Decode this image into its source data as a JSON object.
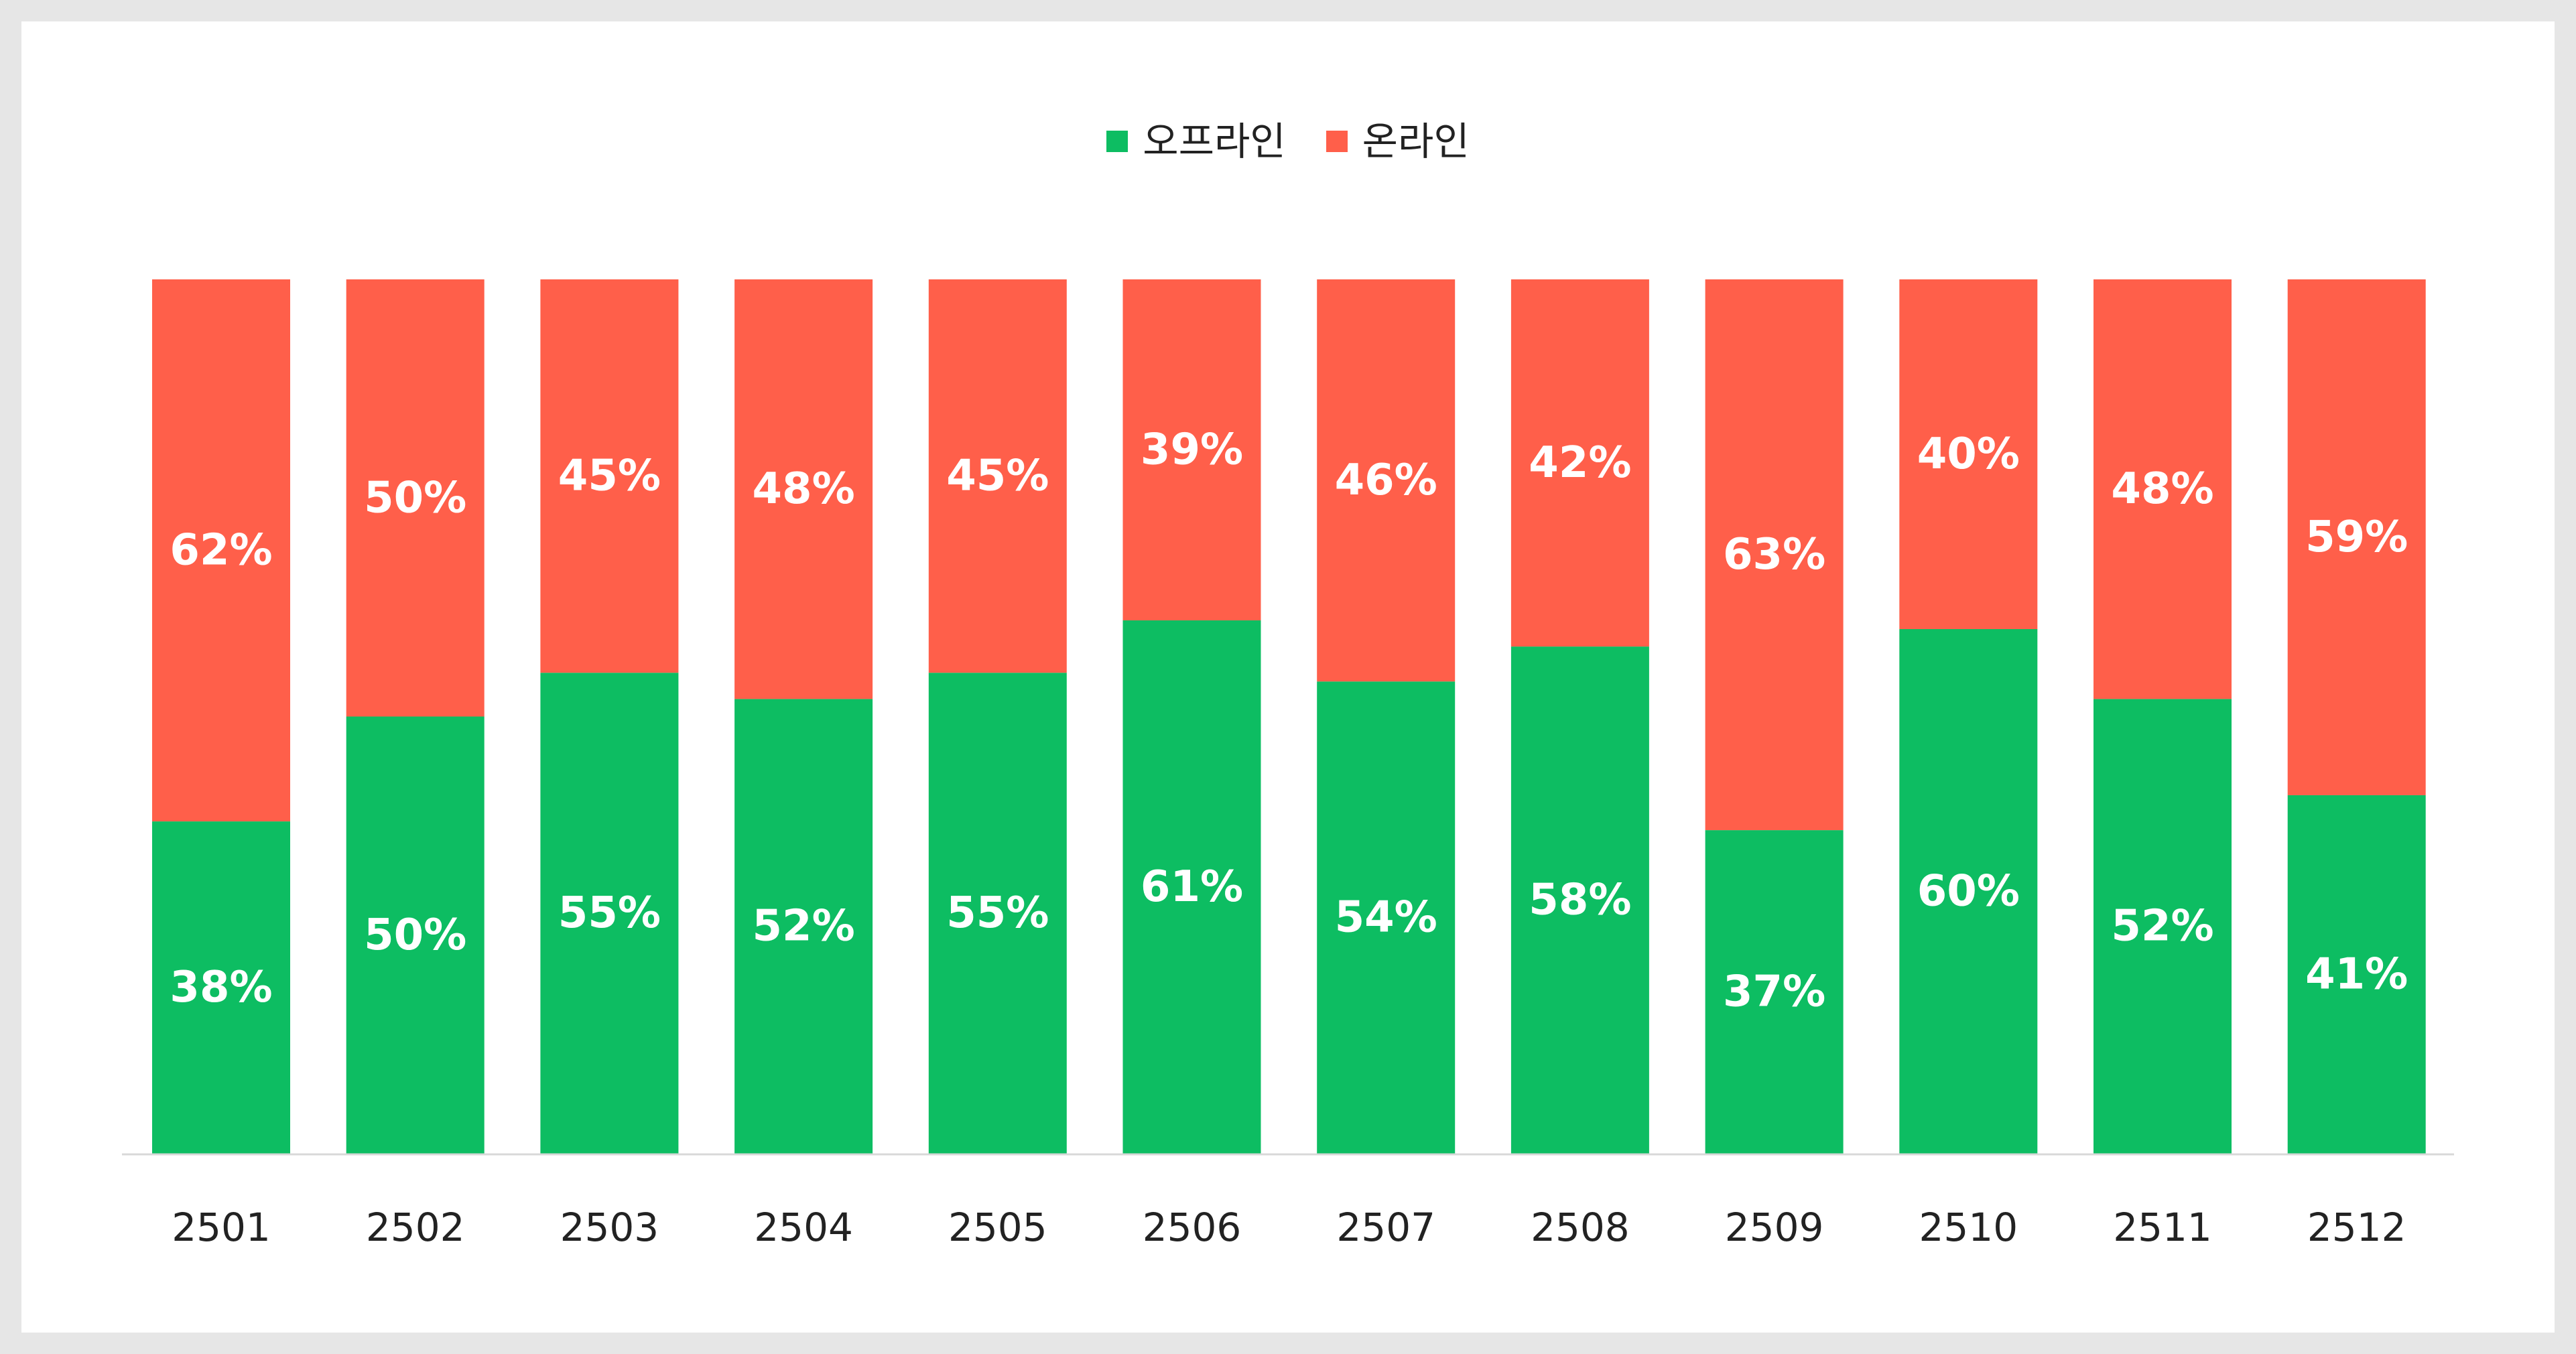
{
  "colors": {
    "offline": "#0dbd62",
    "online": "#ff5f4a",
    "axis": "#d8d8d8",
    "label": "#ffffff"
  },
  "legend": {
    "offline_label": "오프라인",
    "online_label": "온라인"
  },
  "chart_data": {
    "type": "bar",
    "stacked": true,
    "normalized": true,
    "categories": [
      "2501",
      "2502",
      "2503",
      "2504",
      "2505",
      "2506",
      "2507",
      "2508",
      "2509",
      "2510",
      "2511",
      "2512"
    ],
    "series": [
      {
        "name": "오프라인",
        "values": [
          38,
          50,
          55,
          52,
          55,
          61,
          54,
          58,
          37,
          60,
          52,
          41
        ]
      },
      {
        "name": "온라인",
        "values": [
          62,
          50,
          45,
          48,
          45,
          39,
          46,
          42,
          63,
          40,
          48,
          59
        ]
      }
    ],
    "value_suffix": "%",
    "ylim": [
      0,
      100
    ],
    "legend_position": "top-center",
    "grid": false
  }
}
